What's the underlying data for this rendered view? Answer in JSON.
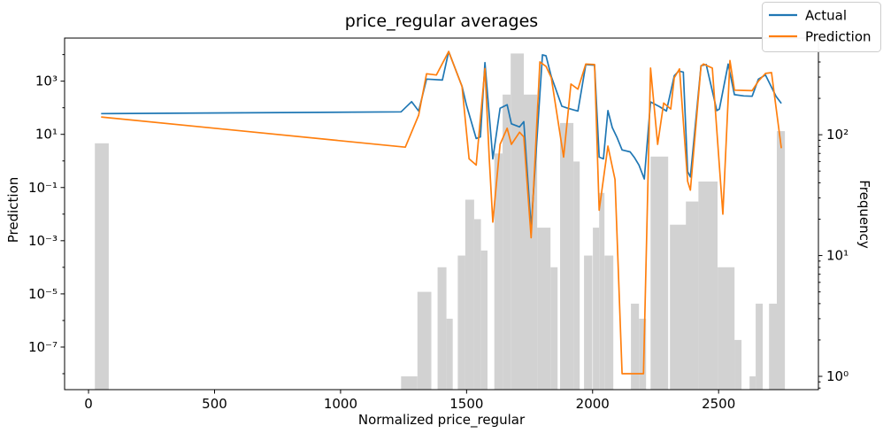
{
  "title": "price_regular averages",
  "legend": {
    "items": [
      {
        "label": "Actual",
        "color": "#1f77b4"
      },
      {
        "label": "Prediction",
        "color": "#ff7f0e"
      }
    ]
  },
  "axes": {
    "x": {
      "label": "Normalized price_regular",
      "tick_values": [
        0,
        500,
        1000,
        1500,
        2000,
        2500
      ],
      "tick_labels": [
        "0",
        "500",
        "1000",
        "1500",
        "2000",
        "2500"
      ],
      "range": [
        -95,
        2896
      ]
    },
    "y_left": {
      "label": "Prediction",
      "tick_values": [
        1000,
        10,
        0.1,
        0.001,
        1e-05,
        1e-07
      ],
      "tick_labels": [
        "10³",
        "10¹",
        "10⁻¹",
        "10⁻³",
        "10⁻⁵",
        "10⁻⁷"
      ],
      "minor_exponents": [
        4,
        2,
        0,
        -2,
        -4,
        -6,
        -8
      ],
      "range_log10": [
        -8.6,
        4.62
      ]
    },
    "y_right": {
      "label": "Frequency",
      "tick_values": [
        100,
        10,
        1
      ],
      "tick_labels": [
        "10²",
        "10¹",
        "10⁰"
      ],
      "range_log10": [
        -0.11,
        2.8
      ]
    }
  },
  "colors": {
    "actual": "#1f77b4",
    "prediction": "#ff7f0e",
    "histogram": "#d2d2d2",
    "frame": "#000000",
    "legend_edge": "#cccccc"
  },
  "chart_data": {
    "type": "line+histogram",
    "title": "price_regular averages",
    "xlabel": "Normalized price_regular",
    "ylabel_left": "Prediction",
    "ylabel_right": "Frequency",
    "x_range": [
      -95,
      2896
    ],
    "y_left_log_range": [
      -8.6,
      4.62
    ],
    "y_right_log_range": [
      -0.11,
      2.8
    ],
    "series": [
      {
        "name": "Actual",
        "color": "#1f77b4",
        "x": [
          50,
          1240,
          1282,
          1310,
          1341,
          1404,
          1429,
          1482,
          1499,
          1538,
          1555,
          1573,
          1604,
          1633,
          1661,
          1678,
          1710,
          1727,
          1756,
          1801,
          1815,
          1836,
          1878,
          1896,
          1921,
          1942,
          1973,
          2008,
          2026,
          2043,
          2061,
          2078,
          2096,
          2117,
          2149,
          2167,
          2184,
          2205,
          2230,
          2265,
          2293,
          2324,
          2342,
          2360,
          2377,
          2388,
          2430,
          2451,
          2493,
          2503,
          2538,
          2563,
          2600,
          2633,
          2658,
          2686,
          2728,
          2749
        ],
        "y": [
          60,
          70,
          170,
          75,
          1200,
          1100,
          13000,
          640,
          130,
          7,
          8,
          5000,
          1.2,
          95,
          130,
          25,
          19,
          30,
          0.003,
          9800,
          9000,
          1500,
          115,
          100,
          85,
          75,
          4200,
          4000,
          1.4,
          1.2,
          78,
          18,
          8,
          2.6,
          2.2,
          1.3,
          0.7,
          0.21,
          165,
          110,
          75,
          1600,
          2400,
          2200,
          0.4,
          0.25,
          3800,
          4200,
          78,
          90,
          4400,
          310,
          280,
          270,
          1200,
          1700,
          270,
          145
        ]
      },
      {
        "name": "Prediction",
        "color": "#ff7f0e",
        "x": [
          50,
          1257,
          1310,
          1341,
          1380,
          1429,
          1482,
          1510,
          1538,
          1573,
          1590,
          1604,
          1633,
          1661,
          1678,
          1710,
          1727,
          1756,
          1791,
          1815,
          1836,
          1885,
          1914,
          1942,
          1973,
          2008,
          2026,
          2061,
          2089,
          2117,
          2202,
          2230,
          2258,
          2282,
          2310,
          2324,
          2345,
          2377,
          2388,
          2430,
          2440,
          2475,
          2517,
          2545,
          2563,
          2600,
          2633,
          2658,
          2686,
          2710,
          2749
        ],
        "y": [
          45,
          3.3,
          53,
          1900,
          1700,
          13000,
          630,
          1.2,
          0.7,
          3000,
          1.2,
          0.005,
          4.2,
          17,
          4.2,
          12,
          8,
          0.0013,
          5300,
          3600,
          1350,
          1.4,
          780,
          500,
          4400,
          4200,
          0.014,
          3.6,
          0.2,
          1e-08,
          1e-08,
          3100,
          4.2,
          150,
          90,
          1350,
          2900,
          0.17,
          0.08,
          3600,
          4400,
          3100,
          0.01,
          6000,
          460,
          450,
          440,
          1000,
          1950,
          2100,
          3
        ]
      }
    ],
    "histogram": {
      "name": "Frequency",
      "axis": "right",
      "color": "#d2d2d2",
      "bars": [
        [
          25,
          80,
          85
        ],
        [
          1240,
          1305,
          1
        ],
        [
          1305,
          1360,
          5
        ],
        [
          1385,
          1420,
          8
        ],
        [
          1420,
          1445,
          3
        ],
        [
          1465,
          1495,
          10
        ],
        [
          1495,
          1530,
          29
        ],
        [
          1530,
          1557,
          20
        ],
        [
          1557,
          1583,
          11
        ],
        [
          1610,
          1643,
          70
        ],
        [
          1643,
          1675,
          215
        ],
        [
          1675,
          1727,
          470
        ],
        [
          1727,
          1780,
          215
        ],
        [
          1780,
          1833,
          17
        ],
        [
          1833,
          1861,
          8
        ],
        [
          1871,
          1924,
          125
        ],
        [
          1924,
          1949,
          60
        ],
        [
          1966,
          1999,
          10
        ],
        [
          2001,
          2026,
          17
        ],
        [
          2026,
          2047,
          33
        ],
        [
          2047,
          2082,
          10
        ],
        [
          2152,
          2184,
          4
        ],
        [
          2184,
          2212,
          3
        ],
        [
          2230,
          2300,
          66
        ],
        [
          2307,
          2388,
          18
        ],
        [
          2370,
          2420,
          28
        ],
        [
          2420,
          2496,
          41
        ],
        [
          2496,
          2563,
          8
        ],
        [
          2563,
          2591,
          2
        ],
        [
          2623,
          2647,
          1
        ],
        [
          2647,
          2675,
          4
        ],
        [
          2700,
          2731,
          4
        ],
        [
          2731,
          2763,
          107
        ]
      ]
    },
    "legend_entries": [
      "Actual",
      "Prediction"
    ],
    "legend_position": "upper right, outside-overlap",
    "grid": false
  }
}
